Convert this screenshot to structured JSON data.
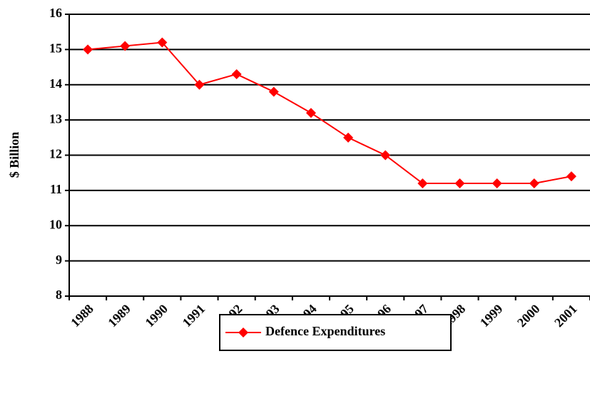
{
  "chart_data": {
    "type": "line",
    "ylabel": "$ Billion",
    "categories": [
      "1988",
      "1989",
      "1990",
      "1991",
      "1992",
      "1993",
      "1994",
      "1995",
      "1996",
      "1997",
      "1998",
      "1999",
      "2000",
      "2001"
    ],
    "series": [
      {
        "name": "Defence Expenditures",
        "color": "#ff0000",
        "values": [
          15,
          15.1,
          15.2,
          14,
          14.3,
          13.8,
          13.2,
          12.5,
          12,
          11.2,
          11.2,
          11.2,
          11.2,
          11.4
        ]
      }
    ],
    "ylim": [
      8,
      16
    ],
    "yticks": [
      8,
      9,
      10,
      11,
      12,
      13,
      14,
      15,
      16
    ],
    "grid": true,
    "legend": "bottom"
  }
}
